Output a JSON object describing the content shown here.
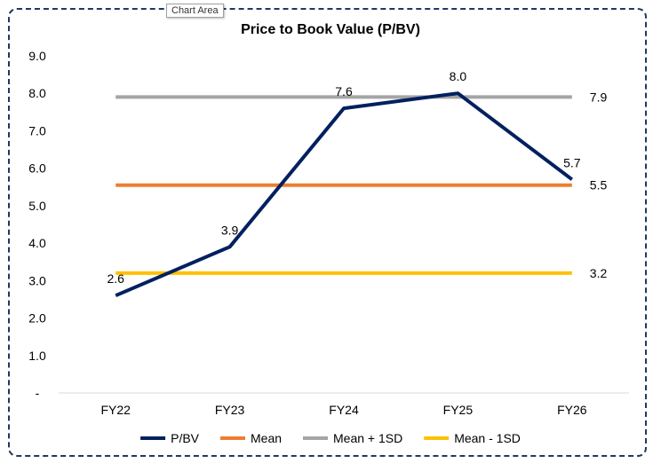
{
  "tooltip": "Chart Area",
  "chart_data": {
    "type": "line",
    "title": "Price to Book Value (P/BV)",
    "categories": [
      "FY22",
      "FY23",
      "FY24",
      "FY25",
      "FY26"
    ],
    "ylim": [
      0,
      9
    ],
    "yticks": [
      "-",
      "1.0",
      "2.0",
      "3.0",
      "4.0",
      "5.0",
      "6.0",
      "7.0",
      "8.0",
      "9.0"
    ],
    "grid": false,
    "legend_position": "bottom",
    "series": [
      {
        "name": "P/BV",
        "values": [
          2.6,
          3.9,
          7.6,
          8.0,
          5.7
        ],
        "color": "#002060",
        "labels": [
          "2.6",
          "3.9",
          "7.6",
          "8.0",
          "5.7"
        ]
      },
      {
        "name": "Mean",
        "values": [
          5.55,
          5.55,
          5.55,
          5.55,
          5.55
        ],
        "color": "#ed7d31",
        "end_label": "5.5"
      },
      {
        "name": "Mean + 1SD",
        "values": [
          7.9,
          7.9,
          7.9,
          7.9,
          7.9
        ],
        "color": "#a5a5a5",
        "end_label": "7.9"
      },
      {
        "name": "Mean - 1SD",
        "values": [
          3.2,
          3.2,
          3.2,
          3.2,
          3.2
        ],
        "color": "#ffc000",
        "end_label": "3.2"
      }
    ]
  }
}
